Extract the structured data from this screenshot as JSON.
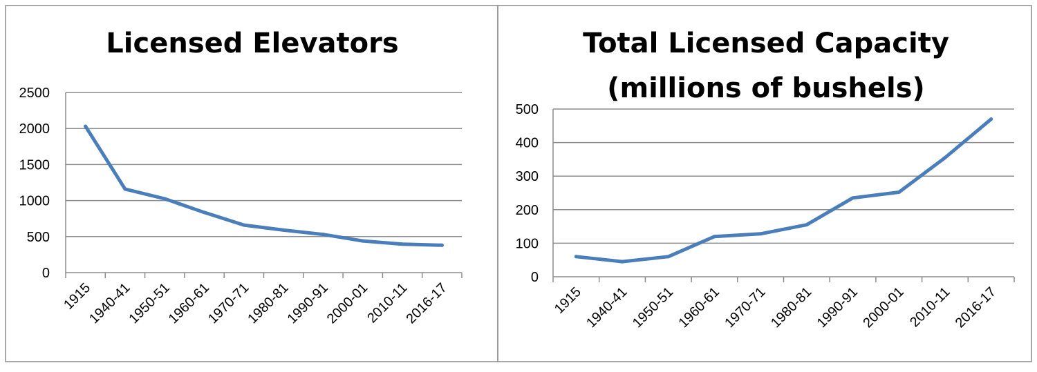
{
  "chart_data": [
    {
      "type": "line",
      "title": "Licensed Elevators",
      "xlabel": "",
      "ylabel": "",
      "categories": [
        "1915",
        "1940-41",
        "1950-51",
        "1960-61",
        "1970-71",
        "1980-81",
        "1990-91",
        "2000-01",
        "2010-11",
        "2016-17"
      ],
      "series": [
        {
          "values": [
            2030,
            1160,
            1025,
            835,
            660,
            590,
            530,
            440,
            395,
            380
          ],
          "color": "#4a7ebb"
        }
      ],
      "ylim": [
        0,
        2500
      ],
      "yticks": [
        0,
        500,
        1000,
        1500,
        2000,
        2500
      ],
      "grid": true,
      "legend": "none"
    },
    {
      "type": "line",
      "title": [
        "Total Licensed Capacity",
        "(millions of bushels)"
      ],
      "xlabel": "",
      "ylabel": "",
      "categories": [
        "1915",
        "1940-41",
        "1950-51",
        "1960-61",
        "1970-71",
        "1980-81",
        "1990-91",
        "2000-01",
        "2010-11",
        "2016-17"
      ],
      "series": [
        {
          "values": [
            60,
            45,
            60,
            120,
            128,
            155,
            235,
            252,
            355,
            470
          ],
          "color": "#4a7ebb"
        }
      ],
      "ylim": [
        0,
        500
      ],
      "yticks": [
        0,
        100,
        200,
        300,
        400,
        500
      ],
      "grid": true,
      "legend": "none"
    }
  ]
}
